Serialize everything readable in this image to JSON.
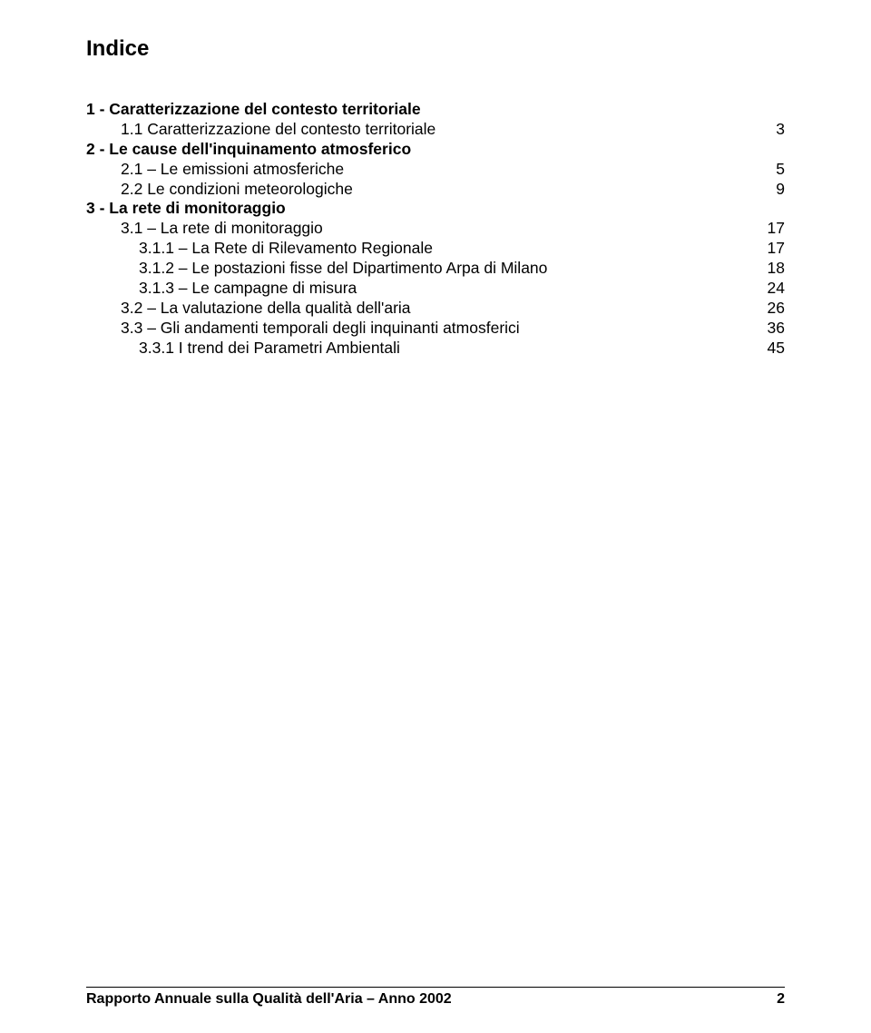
{
  "title": "Indice",
  "toc": [
    {
      "label": "1 - Caratterizzazione del contesto territoriale",
      "page": "",
      "bold": true,
      "indent": 0
    },
    {
      "label": "1.1 Caratterizzazione del contesto territoriale",
      "page": "3",
      "bold": false,
      "indent": 1
    },
    {
      "label": "2 - Le cause dell'inquinamento atmosferico",
      "page": "",
      "bold": true,
      "indent": 0
    },
    {
      "label": "2.1 – Le emissioni atmosferiche",
      "page": "5",
      "bold": false,
      "indent": 1
    },
    {
      "label": "2.2 Le condizioni meteorologiche",
      "page": "9",
      "bold": false,
      "indent": 1
    },
    {
      "label": "3 - La rete di monitoraggio",
      "page": "",
      "bold": true,
      "indent": 0
    },
    {
      "label": "3.1 – La rete di monitoraggio",
      "page": "17",
      "bold": false,
      "indent": 1
    },
    {
      "label": "3.1.1 – La Rete di Rilevamento Regionale",
      "page": "17",
      "bold": false,
      "indent": 2
    },
    {
      "label": "3.1.2 – Le postazioni fisse del Dipartimento Arpa di Milano",
      "page": "18",
      "bold": false,
      "indent": 2
    },
    {
      "label": "3.1.3 – Le campagne di misura",
      "page": "24",
      "bold": false,
      "indent": 2
    },
    {
      "label": "3.2 – La valutazione della qualità dell'aria",
      "page": "26",
      "bold": false,
      "indent": 1
    },
    {
      "label": "3.3 – Gli andamenti temporali degli inquinanti atmosferici",
      "page": "36",
      "bold": false,
      "indent": 1
    },
    {
      "label": "3.3.1 I trend dei Parametri Ambientali",
      "page": "45",
      "bold": false,
      "indent": 2
    }
  ],
  "footer": {
    "text": "Rapporto Annuale sulla Qualità dell'Aria – Anno 2002",
    "page_number": "2"
  }
}
